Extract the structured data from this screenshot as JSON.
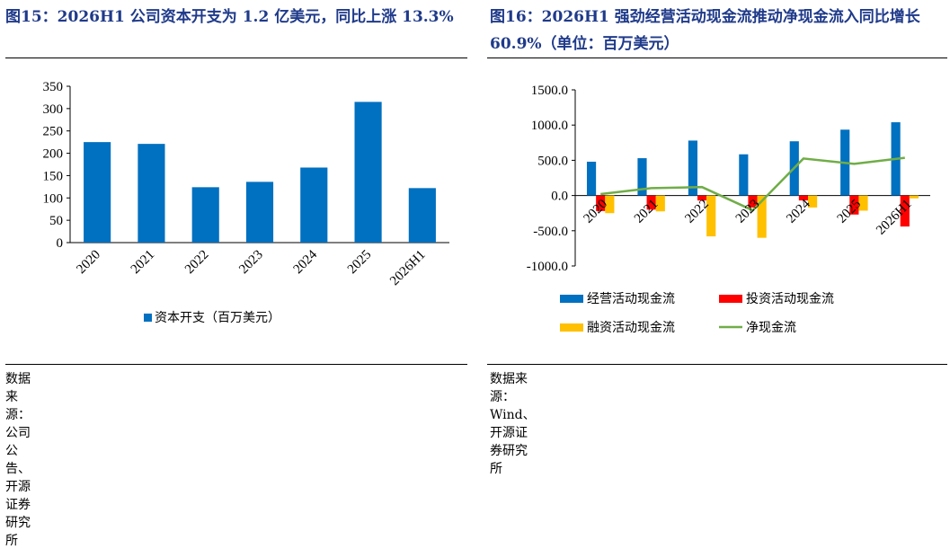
{
  "footer_left": "数据来源：公司公告、开源证券研究所",
  "footer_right": "数据来源：Wind、开源证券研究所",
  "colors": {
    "title": "#1f3a8a",
    "capex": "#0070c0",
    "operating": "#0070c0",
    "investing": "#ff0000",
    "financing": "#ffc000",
    "net": "#70ad47"
  },
  "chart_data": [
    {
      "type": "bar",
      "title": "图15：2026H1 公司资本开支为 1.2 亿美元，同比上涨 13.3%",
      "categories": [
        "2020",
        "2021",
        "2022",
        "2023",
        "2024",
        "2025",
        "2026H1"
      ],
      "series": [
        {
          "name": "资本开支（百万美元）",
          "values": [
            225,
            221,
            124,
            136,
            168,
            315,
            122
          ]
        }
      ],
      "ylim": [
        0,
        350
      ],
      "yticks": [
        "0",
        "50",
        "100",
        "150",
        "200",
        "250",
        "300",
        "350"
      ],
      "legend_position": "bottom",
      "grid": false
    },
    {
      "type": "bar",
      "title": "图16：2026H1 强劲经营活动现金流推动净现金流入同比增长 60.9%（单位：百万美元）",
      "categories": [
        "2020",
        "2021",
        "2022",
        "2023",
        "2024",
        "2025",
        "2026H1"
      ],
      "series": [
        {
          "name": "经营活动现金流",
          "kind": "bar",
          "values": [
            480,
            530,
            780,
            585,
            770,
            935,
            1040
          ]
        },
        {
          "name": "投资活动现金流",
          "kind": "bar",
          "values": [
            -220,
            -200,
            -70,
            -170,
            -70,
            -270,
            -440
          ]
        },
        {
          "name": "融资活动现金流",
          "kind": "bar",
          "values": [
            -250,
            -225,
            -580,
            -600,
            -170,
            -215,
            -40
          ]
        },
        {
          "name": "净现金流",
          "kind": "line",
          "values": [
            20,
            105,
            120,
            -210,
            525,
            450,
            535
          ]
        }
      ],
      "ylim": [
        -1000,
        1500
      ],
      "yticks": [
        "-1000.0",
        "-500.0",
        "0.0",
        "500.0",
        "1000.0",
        "1500.0"
      ],
      "legend_position": "bottom",
      "grid": false
    }
  ]
}
